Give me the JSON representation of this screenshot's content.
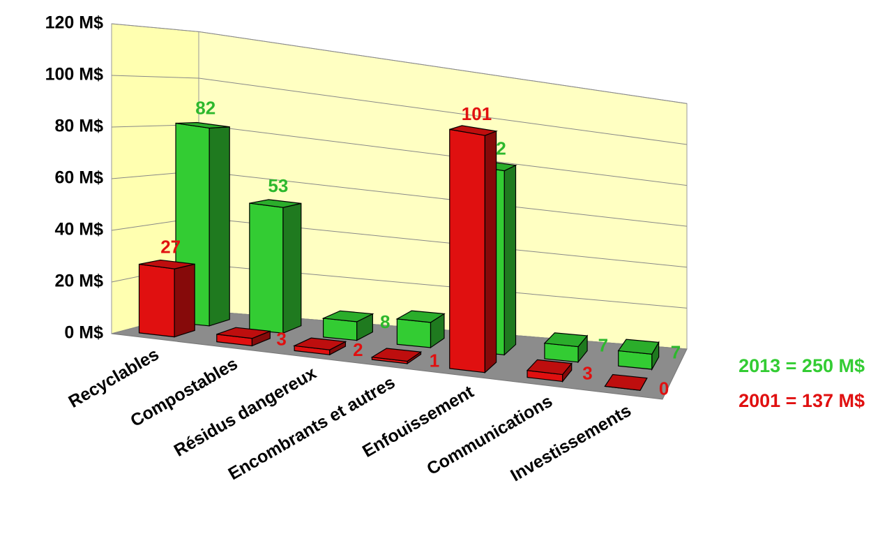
{
  "chart_data": {
    "type": "bar3d",
    "categories": [
      "Recyclables",
      "Compostables",
      "Résidus dangereux",
      "Encombrants et autres",
      "Enfouissement",
      "Communications",
      "Investissements"
    ],
    "series": [
      {
        "name": "2013 = 250 M$",
        "color": "#33cc33",
        "values": [
          82,
          53,
          8,
          11,
          82,
          7,
          7
        ]
      },
      {
        "name": "2001 = 137 M$",
        "color": "#e01010",
        "values": [
          27,
          3,
          2,
          1,
          101,
          3,
          0
        ]
      }
    ],
    "ylim": [
      0,
      120
    ],
    "yticks": [
      {
        "value": 0,
        "label": "0 M$"
      },
      {
        "value": 20,
        "label": "20 M$"
      },
      {
        "value": 40,
        "label": "40 M$"
      },
      {
        "value": 60,
        "label": "60 M$"
      },
      {
        "value": 80,
        "label": "80 M$"
      },
      {
        "value": 100,
        "label": "100 M$"
      },
      {
        "value": 120,
        "label": "120 M$"
      }
    ],
    "grid": true
  }
}
